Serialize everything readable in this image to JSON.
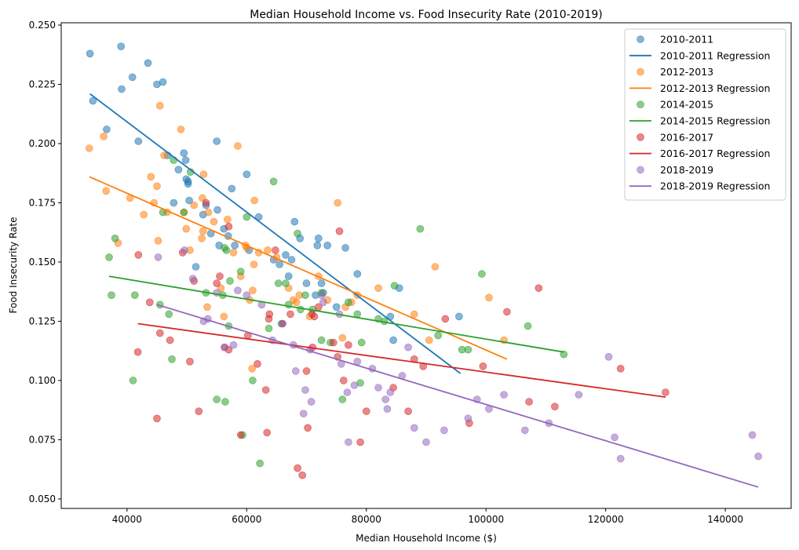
{
  "chart_data": {
    "type": "scatter",
    "title": "Median Household Income vs. Food Insecurity Rate (2010-2019)",
    "xlabel": "Median Household Income ($)",
    "ylabel": "Food Insecurity Rate",
    "xlim": [
      29000,
      151000
    ],
    "ylim": [
      0.046,
      0.251
    ],
    "xticks": [
      40000,
      60000,
      80000,
      100000,
      120000,
      140000
    ],
    "yticks": [
      0.05,
      0.075,
      0.1,
      0.125,
      0.15,
      0.175,
      0.2,
      0.225,
      0.25
    ],
    "xtick_labels": [
      "40000",
      "60000",
      "80000",
      "100000",
      "120000",
      "140000"
    ],
    "ytick_labels": [
      "0.050",
      "0.075",
      "0.100",
      "0.125",
      "0.150",
      "0.175",
      "0.200",
      "0.225",
      "0.250"
    ],
    "grid": false,
    "legend_position": "top-right",
    "series": [
      {
        "name": "2010-2011",
        "regression_name": "2010-2011 Regression",
        "color": "#1f77b4",
        "regression": [
          [
            33800,
            0.221
          ],
          [
            95700,
            0.103
          ]
        ],
        "points": [
          [
            33800,
            0.238
          ],
          [
            34300,
            0.218
          ],
          [
            36600,
            0.206
          ],
          [
            39000,
            0.241
          ],
          [
            39100,
            0.223
          ],
          [
            40900,
            0.228
          ],
          [
            41900,
            0.201
          ],
          [
            43500,
            0.234
          ],
          [
            45000,
            0.225
          ],
          [
            46000,
            0.226
          ],
          [
            46800,
            0.195
          ],
          [
            47800,
            0.175
          ],
          [
            48600,
            0.189
          ],
          [
            49500,
            0.196
          ],
          [
            49800,
            0.193
          ],
          [
            49900,
            0.185
          ],
          [
            50200,
            0.183
          ],
          [
            50200,
            0.184
          ],
          [
            50400,
            0.176
          ],
          [
            51500,
            0.148
          ],
          [
            52700,
            0.17
          ],
          [
            53200,
            0.174
          ],
          [
            54000,
            0.162
          ],
          [
            55000,
            0.201
          ],
          [
            55100,
            0.172
          ],
          [
            55400,
            0.157
          ],
          [
            56200,
            0.164
          ],
          [
            56900,
            0.161
          ],
          [
            57500,
            0.181
          ],
          [
            58000,
            0.157
          ],
          [
            60000,
            0.187
          ],
          [
            60400,
            0.155
          ],
          [
            62000,
            0.169
          ],
          [
            64500,
            0.151
          ],
          [
            65500,
            0.149
          ],
          [
            66500,
            0.153
          ],
          [
            67000,
            0.144
          ],
          [
            67500,
            0.151
          ],
          [
            68000,
            0.167
          ],
          [
            68900,
            0.16
          ],
          [
            70000,
            0.141
          ],
          [
            71500,
            0.136
          ],
          [
            72000,
            0.16
          ],
          [
            71800,
            0.157
          ],
          [
            72500,
            0.141
          ],
          [
            72800,
            0.137
          ],
          [
            73500,
            0.157
          ],
          [
            75000,
            0.131
          ],
          [
            76500,
            0.156
          ],
          [
            78500,
            0.145
          ],
          [
            84000,
            0.127
          ],
          [
            84500,
            0.117
          ],
          [
            85500,
            0.139
          ],
          [
            95500,
            0.127
          ]
        ]
      },
      {
        "name": "2012-2013",
        "regression_name": "2012-2013 Regression",
        "color": "#ff7f0e",
        "regression": [
          [
            33700,
            0.186
          ],
          [
            103500,
            0.109
          ]
        ],
        "points": [
          [
            33700,
            0.198
          ],
          [
            36100,
            0.203
          ],
          [
            36500,
            0.18
          ],
          [
            38500,
            0.158
          ],
          [
            40500,
            0.177
          ],
          [
            42800,
            0.17
          ],
          [
            44000,
            0.186
          ],
          [
            44500,
            0.175
          ],
          [
            45000,
            0.182
          ],
          [
            45200,
            0.159
          ],
          [
            45500,
            0.216
          ],
          [
            46200,
            0.195
          ],
          [
            46700,
            0.171
          ],
          [
            49000,
            0.206
          ],
          [
            49500,
            0.171
          ],
          [
            49900,
            0.164
          ],
          [
            50500,
            0.155
          ],
          [
            51200,
            0.174
          ],
          [
            52500,
            0.16
          ],
          [
            52600,
            0.177
          ],
          [
            52700,
            0.163
          ],
          [
            52800,
            0.187
          ],
          [
            53400,
            0.131
          ],
          [
            53600,
            0.171
          ],
          [
            54500,
            0.167
          ],
          [
            55700,
            0.139
          ],
          [
            56200,
            0.127
          ],
          [
            56800,
            0.168
          ],
          [
            57800,
            0.154
          ],
          [
            58500,
            0.199
          ],
          [
            59000,
            0.144
          ],
          [
            59800,
            0.157
          ],
          [
            60000,
            0.156
          ],
          [
            60500,
            0.134
          ],
          [
            60900,
            0.105
          ],
          [
            61000,
            0.138
          ],
          [
            61200,
            0.149
          ],
          [
            61300,
            0.176
          ],
          [
            62000,
            0.154
          ],
          [
            63500,
            0.155
          ],
          [
            65000,
            0.152
          ],
          [
            67000,
            0.139
          ],
          [
            67800,
            0.134
          ],
          [
            68300,
            0.133
          ],
          [
            68800,
            0.136
          ],
          [
            70500,
            0.127
          ],
          [
            72000,
            0.144
          ],
          [
            73500,
            0.134
          ],
          [
            75200,
            0.175
          ],
          [
            76000,
            0.118
          ],
          [
            76500,
            0.131
          ],
          [
            77500,
            0.133
          ],
          [
            78500,
            0.136
          ],
          [
            82000,
            0.139
          ],
          [
            88000,
            0.128
          ],
          [
            90500,
            0.117
          ],
          [
            91500,
            0.148
          ],
          [
            100500,
            0.135
          ],
          [
            103000,
            0.117
          ]
        ]
      },
      {
        "name": "2014-2015",
        "regression_name": "2014-2015 Regression",
        "color": "#2ca02c",
        "regression": [
          [
            37000,
            0.144
          ],
          [
            113000,
            0.112
          ]
        ],
        "points": [
          [
            37000,
            0.152
          ],
          [
            37400,
            0.136
          ],
          [
            38000,
            0.16
          ],
          [
            41000,
            0.1
          ],
          [
            41300,
            0.136
          ],
          [
            45500,
            0.132
          ],
          [
            46000,
            0.171
          ],
          [
            47000,
            0.128
          ],
          [
            47500,
            0.109
          ],
          [
            47800,
            0.193
          ],
          [
            49500,
            0.171
          ],
          [
            50600,
            0.188
          ],
          [
            53200,
            0.137
          ],
          [
            55000,
            0.092
          ],
          [
            56000,
            0.136
          ],
          [
            56300,
            0.156
          ],
          [
            56400,
            0.091
          ],
          [
            56600,
            0.155
          ],
          [
            57000,
            0.123
          ],
          [
            57200,
            0.142
          ],
          [
            59000,
            0.146
          ],
          [
            59300,
            0.077
          ],
          [
            60000,
            0.169
          ],
          [
            61000,
            0.1
          ],
          [
            62200,
            0.065
          ],
          [
            63700,
            0.122
          ],
          [
            64500,
            0.184
          ],
          [
            65300,
            0.141
          ],
          [
            65800,
            0.124
          ],
          [
            66500,
            0.141
          ],
          [
            67000,
            0.132
          ],
          [
            68500,
            0.162
          ],
          [
            69000,
            0.13
          ],
          [
            69800,
            0.136
          ],
          [
            71000,
            0.13
          ],
          [
            72500,
            0.117
          ],
          [
            72500,
            0.137
          ],
          [
            74000,
            0.116
          ],
          [
            76000,
            0.092
          ],
          [
            77000,
            0.133
          ],
          [
            78500,
            0.128
          ],
          [
            79000,
            0.099
          ],
          [
            79200,
            0.116
          ],
          [
            82000,
            0.126
          ],
          [
            83000,
            0.125
          ],
          [
            84700,
            0.14
          ],
          [
            89000,
            0.164
          ],
          [
            92000,
            0.119
          ],
          [
            96000,
            0.113
          ],
          [
            97000,
            0.113
          ],
          [
            99300,
            0.145
          ],
          [
            107000,
            0.123
          ],
          [
            113000,
            0.111
          ]
        ]
      },
      {
        "name": "2016-2017",
        "regression_name": "2016-2017 Regression",
        "color": "#d62728",
        "regression": [
          [
            41800,
            0.124
          ],
          [
            130000,
            0.093
          ]
        ],
        "points": [
          [
            41800,
            0.112
          ],
          [
            41900,
            0.153
          ],
          [
            43800,
            0.133
          ],
          [
            45000,
            0.084
          ],
          [
            45500,
            0.12
          ],
          [
            47200,
            0.117
          ],
          [
            49300,
            0.154
          ],
          [
            50500,
            0.108
          ],
          [
            51200,
            0.142
          ],
          [
            52000,
            0.087
          ],
          [
            53200,
            0.175
          ],
          [
            55000,
            0.141
          ],
          [
            55500,
            0.144
          ],
          [
            56300,
            0.114
          ],
          [
            57000,
            0.165
          ],
          [
            57000,
            0.113
          ],
          [
            59000,
            0.077
          ],
          [
            60200,
            0.119
          ],
          [
            61800,
            0.107
          ],
          [
            63200,
            0.096
          ],
          [
            63400,
            0.078
          ],
          [
            63700,
            0.126
          ],
          [
            63800,
            0.128
          ],
          [
            64800,
            0.155
          ],
          [
            66000,
            0.124
          ],
          [
            67300,
            0.128
          ],
          [
            68500,
            0.063
          ],
          [
            69300,
            0.06
          ],
          [
            70000,
            0.104
          ],
          [
            70200,
            0.08
          ],
          [
            70900,
            0.128
          ],
          [
            71000,
            0.114
          ],
          [
            71300,
            0.127
          ],
          [
            72000,
            0.131
          ],
          [
            74500,
            0.116
          ],
          [
            75200,
            0.11
          ],
          [
            75500,
            0.163
          ],
          [
            76200,
            0.1
          ],
          [
            77000,
            0.115
          ],
          [
            79000,
            0.074
          ],
          [
            80000,
            0.087
          ],
          [
            84500,
            0.097
          ],
          [
            87000,
            0.087
          ],
          [
            88000,
            0.109
          ],
          [
            89500,
            0.106
          ],
          [
            93200,
            0.126
          ],
          [
            97200,
            0.082
          ],
          [
            99500,
            0.106
          ],
          [
            103500,
            0.129
          ],
          [
            107200,
            0.091
          ],
          [
            108800,
            0.139
          ],
          [
            111500,
            0.089
          ],
          [
            122500,
            0.105
          ],
          [
            130000,
            0.095
          ]
        ]
      },
      {
        "name": "2018-2019",
        "regression_name": "2018-2019 Regression",
        "color": "#9467bd",
        "regression": [
          [
            45000,
            0.132
          ],
          [
            145500,
            0.055
          ]
        ],
        "points": [
          [
            45200,
            0.152
          ],
          [
            49600,
            0.155
          ],
          [
            51000,
            0.143
          ],
          [
            52800,
            0.125
          ],
          [
            53500,
            0.126
          ],
          [
            55000,
            0.137
          ],
          [
            56300,
            0.114
          ],
          [
            57800,
            0.115
          ],
          [
            58500,
            0.138
          ],
          [
            60000,
            0.136
          ],
          [
            62500,
            0.132
          ],
          [
            64300,
            0.117
          ],
          [
            66000,
            0.124
          ],
          [
            67800,
            0.115
          ],
          [
            68200,
            0.104
          ],
          [
            69500,
            0.086
          ],
          [
            69800,
            0.096
          ],
          [
            70600,
            0.113
          ],
          [
            70800,
            0.091
          ],
          [
            72500,
            0.136
          ],
          [
            72800,
            0.133
          ],
          [
            75500,
            0.128
          ],
          [
            75800,
            0.107
          ],
          [
            76800,
            0.095
          ],
          [
            77000,
            0.074
          ],
          [
            78000,
            0.098
          ],
          [
            78500,
            0.108
          ],
          [
            81000,
            0.105
          ],
          [
            82000,
            0.097
          ],
          [
            83200,
            0.092
          ],
          [
            83500,
            0.088
          ],
          [
            84000,
            0.095
          ],
          [
            86000,
            0.102
          ],
          [
            87000,
            0.114
          ],
          [
            88000,
            0.08
          ],
          [
            90000,
            0.074
          ],
          [
            93000,
            0.079
          ],
          [
            97000,
            0.084
          ],
          [
            98500,
            0.092
          ],
          [
            100500,
            0.088
          ],
          [
            103000,
            0.094
          ],
          [
            106500,
            0.079
          ],
          [
            110500,
            0.082
          ],
          [
            115500,
            0.094
          ],
          [
            120500,
            0.11
          ],
          [
            121500,
            0.076
          ],
          [
            122500,
            0.067
          ],
          [
            144500,
            0.077
          ],
          [
            145500,
            0.068
          ]
        ]
      }
    ]
  }
}
